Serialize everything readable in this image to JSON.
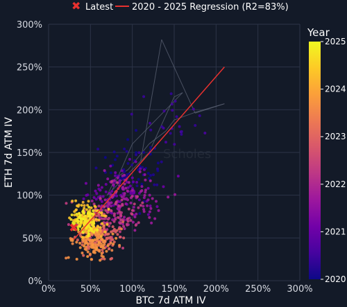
{
  "chart_data": {
    "type": "scatter",
    "title": "",
    "xlabel": "BTC 7d ATM IV",
    "ylabel": "ETH 7d ATM IV",
    "xlim": [
      0,
      300
    ],
    "ylim": [
      0,
      300
    ],
    "x_ticks": [
      "0%",
      "50%",
      "100%",
      "150%",
      "200%",
      "250%",
      "300%"
    ],
    "y_ticks": [
      "0%",
      "50%",
      "100%",
      "150%",
      "200%",
      "250%",
      "300%"
    ],
    "grid": true,
    "legend_position": "top",
    "watermark": "Scholes",
    "colorbar": {
      "title": "Year",
      "range": [
        2020,
        2025
      ],
      "ticks": [
        "2020",
        "2021",
        "2022",
        "2023",
        "2024",
        "2025"
      ],
      "colors": [
        "#0d0887",
        "#46039f",
        "#7201a8",
        "#9c179e",
        "#bd3786",
        "#d8576b",
        "#ed7953",
        "#fb9f3a",
        "#fdca26",
        "#f0f921"
      ]
    },
    "series": [
      {
        "name": "Latest",
        "marker": "x",
        "color": "#e8312f",
        "points": [
          [
            30,
            62
          ]
        ]
      },
      {
        "name": "2020 - 2025 Regression (R2=83%)",
        "marker": "line",
        "color": "#e8312f",
        "points": [
          [
            30,
            48
          ],
          [
            210,
            250
          ]
        ]
      }
    ],
    "path_samples": [
      [
        110,
        140
      ],
      [
        135,
        282
      ],
      [
        175,
        196
      ],
      [
        210,
        207
      ],
      [
        175,
        197
      ],
      [
        150,
        188
      ],
      [
        140,
        175
      ],
      [
        120,
        160
      ],
      [
        95,
        130
      ],
      [
        80,
        120
      ],
      [
        70,
        100
      ],
      [
        120,
        150
      ],
      [
        150,
        215
      ],
      [
        160,
        220
      ],
      [
        130,
        190
      ],
      [
        100,
        160
      ],
      [
        60,
        70
      ]
    ]
  }
}
